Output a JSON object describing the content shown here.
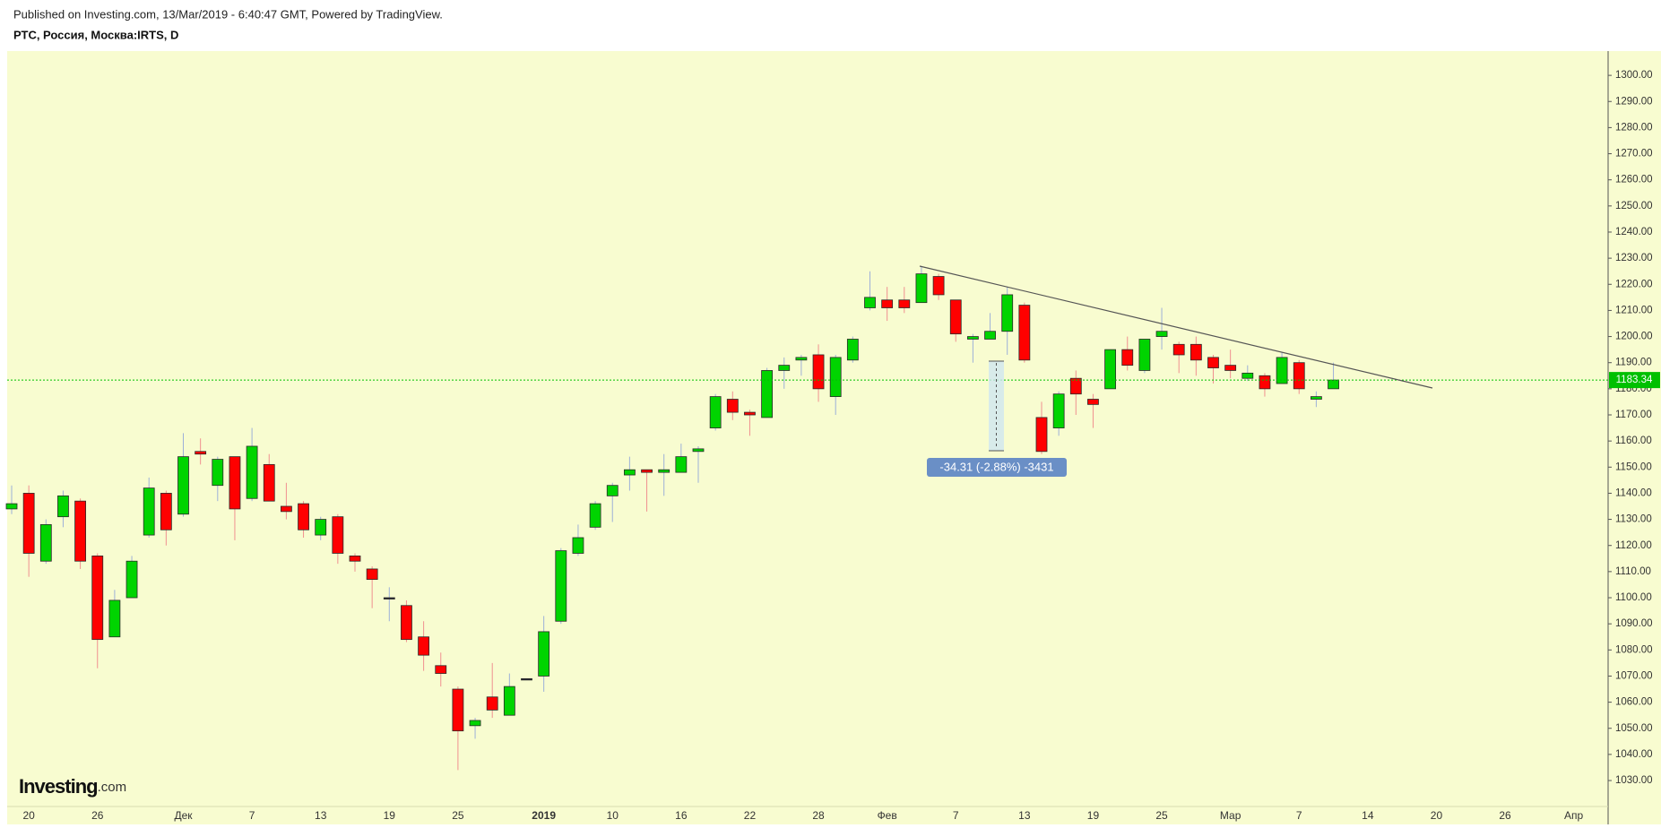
{
  "chart_data": {
    "type": "candlestick",
    "subtitle": "Published on Investing.com, 13/Mar/2019 - 6:40:47 GMT, Powered by TradingView.",
    "title": "РТС, Россия, Москва:IRTS, D",
    "logo": "Investing",
    "logo_suffix": ".com",
    "annotations": [
      "-34.31 (-2.88%) -3431"
    ],
    "categories": [
      null,
      "20",
      null,
      null,
      null,
      "26",
      null,
      null,
      null,
      null,
      "Дек",
      null,
      null,
      null,
      "7",
      null,
      null,
      null,
      "13",
      null,
      null,
      null,
      "19",
      null,
      null,
      null,
      "25",
      null,
      null,
      null,
      null,
      "2019",
      null,
      null,
      null,
      "10",
      null,
      null,
      null,
      "16",
      null,
      null,
      null,
      "22",
      null,
      null,
      null,
      "28",
      null,
      null,
      null,
      "Фев",
      null,
      null,
      null,
      "7",
      null,
      null,
      null,
      "13",
      null,
      null,
      null,
      "19",
      null,
      null,
      null,
      "25",
      null,
      null,
      null,
      "Мар",
      null,
      null,
      null,
      "7",
      null,
      null,
      null,
      "14",
      null,
      null,
      null,
      "20",
      null,
      null,
      null,
      "26",
      null,
      null,
      null,
      "Апр",
      null
    ],
    "open": [
      1134,
      1140,
      1114,
      1131,
      1137,
      1116,
      1085,
      1100,
      1124,
      1140,
      1132,
      1156,
      1143,
      1154,
      1138,
      1151,
      1135,
      1136,
      1124,
      1131,
      1116,
      1111,
      1100,
      1097,
      1085,
      1074,
      1065,
      1051,
      1062,
      1055,
      1069,
      1070,
      1091,
      1117,
      1127,
      1139,
      1147,
      1149,
      1148,
      1148,
      1156,
      1165,
      1176,
      1171,
      1169,
      1187,
      1191,
      1193,
      1177,
      1191,
      1211,
      1214,
      1214,
      1213,
      1223,
      1214,
      1199,
      1199,
      1202,
      1212,
      1169,
      1165,
      1184,
      1176,
      1180,
      1195,
      1187,
      1200,
      1197,
      1197,
      1192,
      1189,
      1184,
      1185,
      1182,
      1190,
      1176,
      1180,
      null,
      null,
      null,
      null,
      null,
      null,
      null,
      null,
      null,
      null,
      null,
      null,
      null,
      null,
      null
    ],
    "high": [
      1143,
      1143,
      1130,
      1141,
      1138,
      1117,
      1103,
      1116,
      1146,
      1141,
      1163,
      1161,
      1154,
      1154,
      1165,
      1155,
      1144,
      1137,
      1131,
      1132,
      1117,
      1112,
      1104,
      1099,
      1091,
      1079,
      1066,
      1054,
      1075,
      1071,
      1069,
      1093,
      1119,
      1128,
      1137,
      1144,
      1154,
      1149,
      1155,
      1159,
      1158,
      1178,
      1179,
      1172,
      1188,
      1192,
      1193,
      1197,
      1193,
      1200,
      1225,
      1219,
      1219,
      1227,
      1224,
      1214,
      1201,
      1209,
      1219,
      1213,
      1175,
      1179,
      1187,
      1178,
      1195,
      1200,
      1199,
      1211,
      1198,
      1200,
      1193,
      1195,
      1189,
      1186,
      1194,
      1191,
      1179,
      1190,
      null,
      null,
      null,
      null,
      null,
      null,
      null,
      null,
      null,
      null,
      null,
      null,
      null,
      null,
      null
    ],
    "low": [
      1132,
      1108,
      1113,
      1127,
      1111,
      1073,
      1085,
      1100,
      1123,
      1120,
      1131,
      1151,
      1137,
      1122,
      1137,
      1137,
      1130,
      1123,
      1122,
      1113,
      1110,
      1096,
      1091,
      1083,
      1072,
      1066,
      1034,
      1046,
      1054,
      1055,
      1069,
      1064,
      1090,
      1116,
      1126,
      1129,
      1141,
      1133,
      1139,
      1148,
      1144,
      1164,
      1168,
      1162,
      1169,
      1180,
      1185,
      1175,
      1170,
      1190,
      1210,
      1206,
      1209,
      1213,
      1214,
      1198,
      1190,
      1199,
      1193,
      1190,
      1155,
      1162,
      1170,
      1165,
      1180,
      1187,
      1186,
      1195,
      1186,
      1185,
      1182,
      1184,
      1183,
      1177,
      1182,
      1178,
      1173,
      1180,
      null,
      null,
      null,
      null,
      null,
      null,
      null,
      null,
      null,
      null,
      null,
      null,
      null,
      null,
      null
    ],
    "close": [
      1136,
      1117,
      1128,
      1139,
      1114,
      1084,
      1099,
      1114,
      1142,
      1126,
      1154,
      1155,
      1153,
      1134,
      1158,
      1137,
      1133,
      1126,
      1130,
      1117,
      1114,
      1107,
      1100,
      1084,
      1078,
      1071,
      1049,
      1053,
      1057,
      1066,
      1069,
      1087,
      1118,
      1123,
      1136,
      1143,
      1149,
      1148,
      1149,
      1154,
      1157,
      1177,
      1171,
      1170,
      1187,
      1189,
      1192,
      1180,
      1192,
      1199,
      1215,
      1211,
      1211,
      1224,
      1216,
      1201,
      1200,
      1202,
      1216,
      1191,
      1156,
      1178,
      1178,
      1174,
      1195,
      1189,
      1199,
      1202,
      1193,
      1191,
      1188,
      1187,
      1186,
      1180,
      1192,
      1180,
      1177,
      1183.34,
      null,
      null,
      null,
      null,
      null,
      null,
      null,
      null,
      null,
      null,
      null,
      null,
      null,
      null,
      null
    ],
    "up_color": "#00d400",
    "down_color": "#ff0000",
    "price_line_color": "#00c000",
    "ylim": [
      1013.2,
      1309.3
    ],
    "yticks": [
      {
        "value": 1030,
        "label": "1030.00"
      },
      {
        "value": 1040,
        "label": "1040.00"
      },
      {
        "value": 1050,
        "label": "1050.00"
      },
      {
        "value": 1060,
        "label": "1060.00"
      },
      {
        "value": 1070,
        "label": "1070.00"
      },
      {
        "value": 1080,
        "label": "1080.00"
      },
      {
        "value": 1090,
        "label": "1090.00"
      },
      {
        "value": 1100,
        "label": "1100.00"
      },
      {
        "value": 1110,
        "label": "1110.00"
      },
      {
        "value": 1120,
        "label": "1120.00"
      },
      {
        "value": 1130,
        "label": "1130.00"
      },
      {
        "value": 1140,
        "label": "1140.00"
      },
      {
        "value": 1150,
        "label": "1150.00"
      },
      {
        "value": 1160,
        "label": "1160.00"
      },
      {
        "value": 1170,
        "label": "1170.00"
      },
      {
        "value": 1180,
        "label": "1180.00"
      },
      {
        "value": 1190,
        "label": "1190.00"
      },
      {
        "value": 1200,
        "label": "1200.00"
      },
      {
        "value": 1210,
        "label": "1210.00"
      },
      {
        "value": 1220,
        "label": "1220.00"
      },
      {
        "value": 1230,
        "label": "1230.00"
      },
      {
        "value": 1240,
        "label": "1240.00"
      },
      {
        "value": 1250,
        "label": "1250.00"
      },
      {
        "value": 1260,
        "label": "1260.00"
      },
      {
        "value": 1270,
        "label": "1270.00"
      },
      {
        "value": 1280,
        "label": "1280.00"
      },
      {
        "value": 1290,
        "label": "1290.00"
      },
      {
        "value": 1300,
        "label": "1300.00"
      }
    ]
  }
}
